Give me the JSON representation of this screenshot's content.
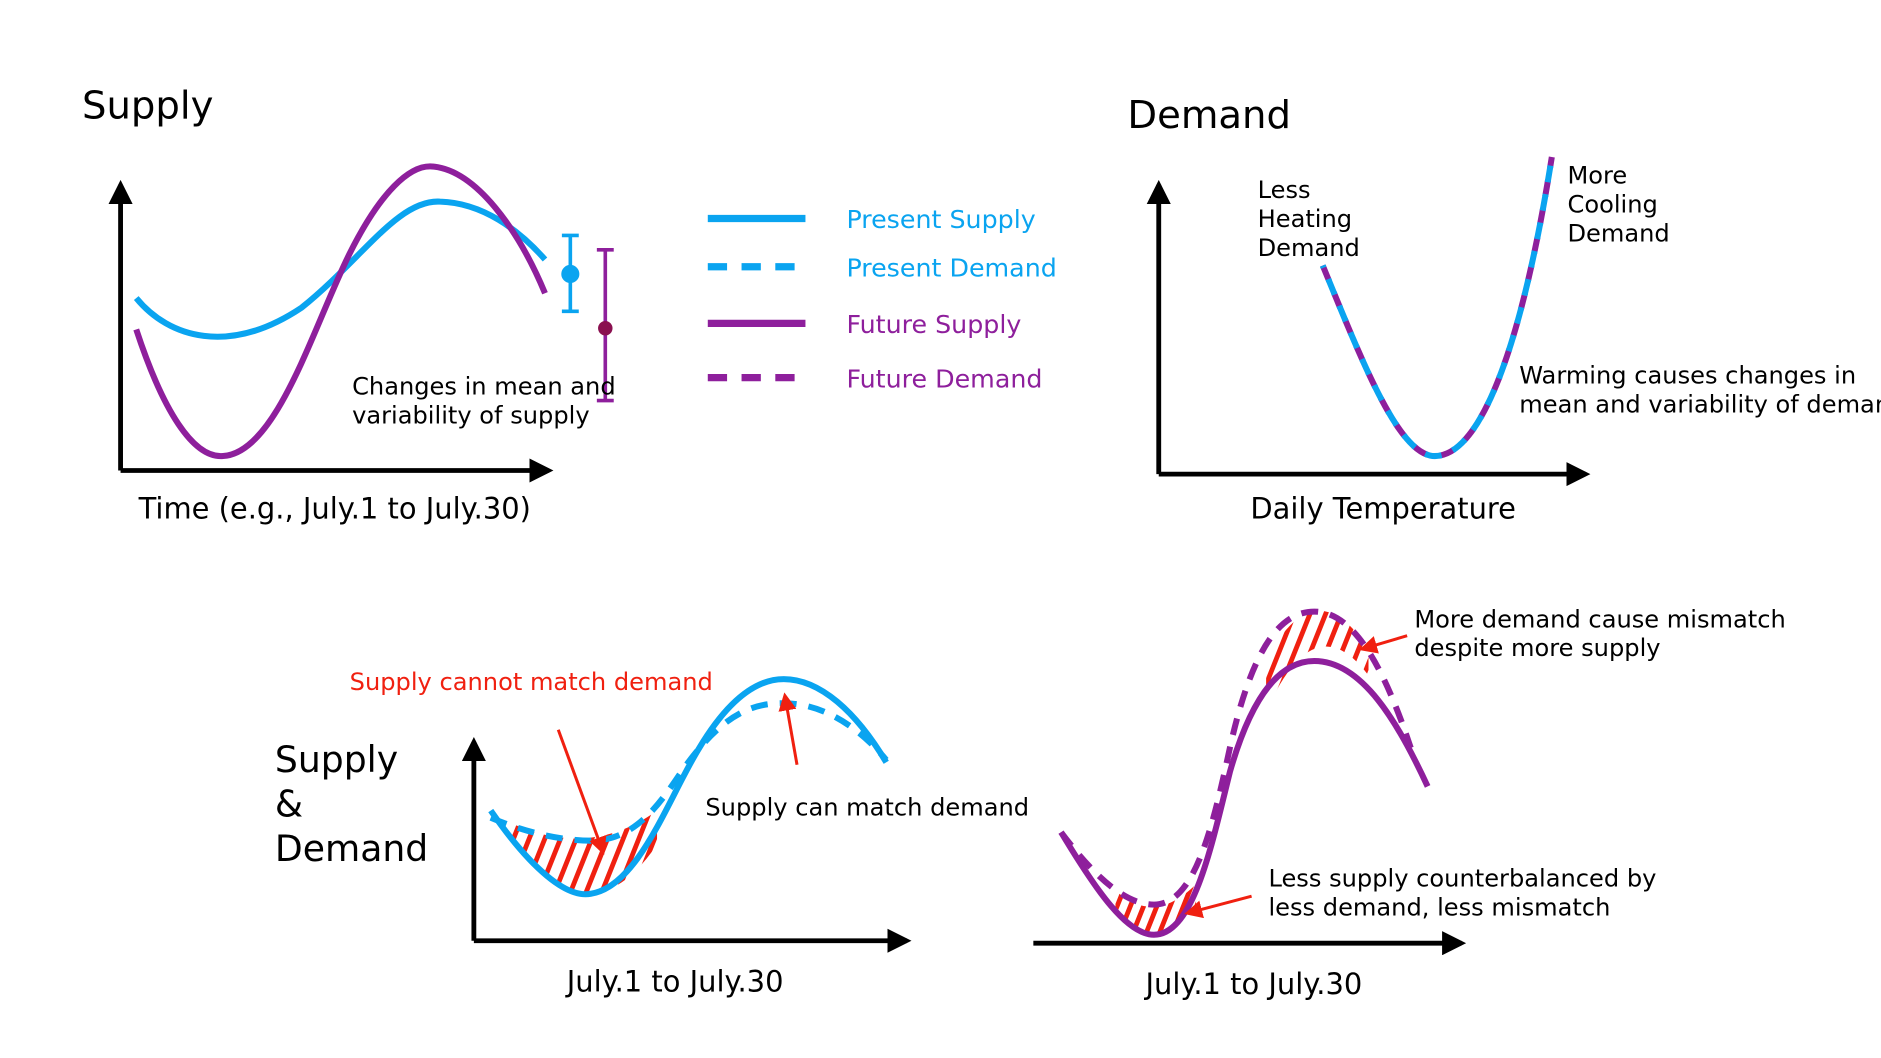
{
  "colors": {
    "present": "#0aa4f0",
    "future": "#8e1f9c",
    "mismatch": "#f02010",
    "axis": "#000000",
    "future_dot": "#8a1050"
  },
  "panel_supply": {
    "title": "Supply",
    "xlabel": "Time (e.g., July.1 to July.30)",
    "note_line1": "Changes in mean and",
    "note_line2": "variability of supply"
  },
  "legend": [
    {
      "label": "Present Supply",
      "style": "solid",
      "color": "#0aa4f0"
    },
    {
      "label": "Present Demand",
      "style": "dashed",
      "color": "#0aa4f0"
    },
    {
      "label": "Future Supply",
      "style": "solid",
      "color": "#8e1f9c"
    },
    {
      "label": "Future Demand",
      "style": "dashed",
      "color": "#8e1f9c"
    }
  ],
  "panel_demand": {
    "title": "Demand",
    "xlabel": "Daily Temperature",
    "left_note": [
      "Less",
      "Heating",
      "Demand"
    ],
    "right_note": [
      "More",
      "Cooling",
      "Demand"
    ],
    "warming_line1": "Warming causes changes in",
    "warming_line2": "mean and variability of demand"
  },
  "panel_present": {
    "title": [
      "Supply",
      "&",
      "Demand"
    ],
    "xlabel": "July.1 to July.30",
    "mismatch_note": "Supply cannot match demand",
    "match_note": "Supply can match demand"
  },
  "panel_future": {
    "xlabel": "July.1 to July.30",
    "peak_note_line1": "More demand cause mismatch",
    "peak_note_line2": "despite more supply",
    "trough_note_line1": "Less supply counterbalanced by",
    "trough_note_line2": "less demand, less mismatch"
  }
}
